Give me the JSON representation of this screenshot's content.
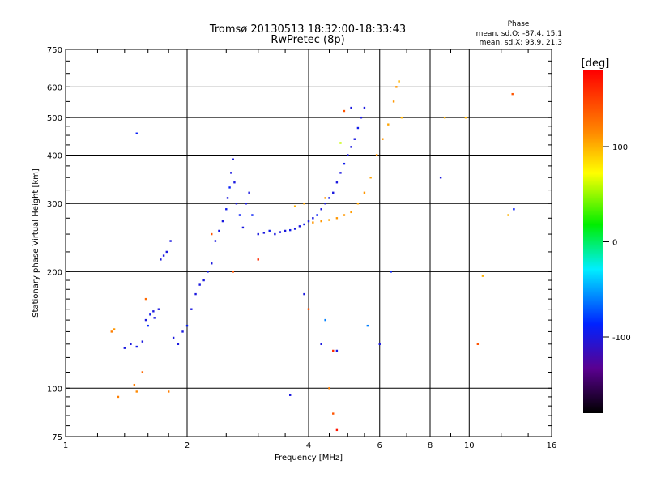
{
  "chart_data": {
    "type": "scatter",
    "title": "Tromsø 20130513 18:32:00-18:33:43",
    "subtitle": "RwPretec (8p)",
    "xlabel": "Frequency [MHz]",
    "ylabel": "Stationary phase Virtual Height [km]",
    "xscale": "log",
    "yscale": "log",
    "xlim": [
      1,
      16
    ],
    "ylim": [
      75,
      750
    ],
    "xticks": [
      1,
      2,
      4,
      6,
      8,
      10,
      16
    ],
    "xtick_labels": [
      "1",
      "2",
      "4",
      "6",
      "8",
      "10",
      "16"
    ],
    "yticks": [
      75,
      100,
      200,
      300,
      400,
      500,
      600,
      750
    ],
    "ytick_labels": [
      "75",
      "100",
      "200",
      "300",
      "400",
      "500",
      "600",
      "750"
    ],
    "grid": true,
    "stats": {
      "heading": "Phase",
      "line_o": "mean, sd,O:  -87.4, 15.1",
      "line_x": "mean, sd,X:  93.9, 21.3"
    },
    "colorbar": {
      "label": "[deg]",
      "range": [
        -180,
        180
      ],
      "ticks": [
        100,
        0,
        -100
      ],
      "tick_labels": [
        "100",
        "0",
        "-100"
      ]
    },
    "series": [
      {
        "name": "Phase (deg)",
        "points": [
          [
            1.4,
            127,
            -100
          ],
          [
            1.45,
            130,
            -100
          ],
          [
            1.5,
            128,
            -95
          ],
          [
            1.55,
            132,
            -100
          ],
          [
            1.58,
            150,
            -100
          ],
          [
            1.62,
            155,
            -95
          ],
          [
            1.66,
            152,
            -100
          ],
          [
            1.7,
            160,
            -100
          ],
          [
            1.65,
            158,
            -100
          ],
          [
            1.6,
            145,
            -85
          ],
          [
            1.72,
            215,
            -100
          ],
          [
            1.75,
            220,
            -100
          ],
          [
            1.78,
            225,
            -100
          ],
          [
            1.82,
            240,
            -100
          ],
          [
            1.85,
            135,
            -100
          ],
          [
            1.9,
            130,
            -100
          ],
          [
            1.95,
            140,
            -100
          ],
          [
            2.0,
            145,
            -90
          ],
          [
            2.05,
            160,
            -100
          ],
          [
            2.1,
            175,
            -100
          ],
          [
            2.15,
            185,
            -100
          ],
          [
            2.2,
            190,
            -100
          ],
          [
            2.25,
            200,
            -95
          ],
          [
            2.3,
            210,
            -100
          ],
          [
            2.35,
            240,
            -100
          ],
          [
            2.4,
            255,
            -100
          ],
          [
            2.45,
            270,
            -100
          ],
          [
            2.5,
            290,
            -95
          ],
          [
            2.52,
            310,
            -100
          ],
          [
            2.55,
            330,
            -90
          ],
          [
            2.57,
            360,
            -100
          ],
          [
            2.6,
            390,
            -100
          ],
          [
            2.62,
            340,
            -100
          ],
          [
            2.65,
            300,
            -100
          ],
          [
            2.7,
            280,
            -90
          ],
          [
            2.75,
            260,
            -100
          ],
          [
            2.8,
            300,
            -100
          ],
          [
            2.85,
            320,
            -100
          ],
          [
            2.9,
            280,
            -90
          ],
          [
            3.0,
            250,
            -100
          ],
          [
            3.1,
            252,
            -100
          ],
          [
            3.2,
            255,
            -95
          ],
          [
            3.3,
            250,
            -100
          ],
          [
            3.4,
            253,
            -100
          ],
          [
            3.5,
            255,
            -100
          ],
          [
            3.6,
            256,
            -95
          ],
          [
            3.7,
            258,
            -100
          ],
          [
            3.8,
            262,
            -100
          ],
          [
            3.9,
            265,
            -95
          ],
          [
            4.0,
            270,
            -100
          ],
          [
            4.1,
            275,
            -100
          ],
          [
            4.2,
            280,
            -90
          ],
          [
            4.3,
            290,
            -100
          ],
          [
            4.4,
            300,
            -100
          ],
          [
            4.5,
            310,
            -95
          ],
          [
            4.6,
            320,
            -100
          ],
          [
            4.7,
            340,
            -100
          ],
          [
            4.8,
            360,
            -100
          ],
          [
            4.9,
            380,
            -95
          ],
          [
            5.0,
            400,
            -100
          ],
          [
            5.1,
            420,
            -100
          ],
          [
            5.2,
            440,
            -100
          ],
          [
            5.3,
            470,
            -95
          ],
          [
            5.4,
            500,
            -100
          ],
          [
            5.5,
            530,
            -100
          ],
          [
            4.1,
            268,
            110
          ],
          [
            4.3,
            270,
            110
          ],
          [
            4.5,
            272,
            105
          ],
          [
            4.7,
            275,
            110
          ],
          [
            4.9,
            280,
            110
          ],
          [
            5.1,
            285,
            108
          ],
          [
            5.3,
            300,
            105
          ],
          [
            5.5,
            320,
            110
          ],
          [
            5.7,
            350,
            105
          ],
          [
            5.9,
            400,
            110
          ],
          [
            6.1,
            440,
            110
          ],
          [
            6.3,
            480,
            105
          ],
          [
            6.5,
            550,
            110
          ],
          [
            6.6,
            600,
            110
          ],
          [
            6.7,
            620,
            100
          ],
          [
            3.7,
            295,
            100
          ],
          [
            3.9,
            300,
            105
          ],
          [
            4.4,
            310,
            110
          ],
          [
            1.35,
            95,
            120
          ],
          [
            1.48,
            102,
            120
          ],
          [
            1.5,
            98,
            115
          ],
          [
            1.55,
            110,
            130
          ],
          [
            1.58,
            170,
            130
          ],
          [
            1.8,
            98,
            120
          ],
          [
            1.3,
            140,
            120
          ],
          [
            1.32,
            142,
            110
          ],
          [
            1.5,
            455,
            -90
          ],
          [
            2.3,
            250,
            140
          ],
          [
            2.6,
            200,
            140
          ],
          [
            3.0,
            215,
            160
          ],
          [
            3.6,
            96,
            -100
          ],
          [
            3.9,
            175,
            -100
          ],
          [
            4.0,
            160,
            140
          ],
          [
            4.3,
            130,
            -100
          ],
          [
            4.4,
            150,
            -60
          ],
          [
            4.6,
            125,
            160
          ],
          [
            4.7,
            125,
            -100
          ],
          [
            4.5,
            100,
            120
          ],
          [
            4.6,
            86,
            140
          ],
          [
            4.7,
            78,
            170
          ],
          [
            4.8,
            430,
            60
          ],
          [
            4.9,
            520,
            140
          ],
          [
            5.1,
            530,
            -100
          ],
          [
            6.4,
            200,
            -90
          ],
          [
            6.0,
            130,
            -100
          ],
          [
            6.8,
            500,
            100
          ],
          [
            8.5,
            350,
            -100
          ],
          [
            8.7,
            500,
            100
          ],
          [
            9.8,
            500,
            100
          ],
          [
            10.8,
            195,
            100
          ],
          [
            10.5,
            130,
            140
          ],
          [
            12.8,
            575,
            140
          ],
          [
            12.9,
            290,
            -90
          ],
          [
            12.5,
            280,
            100
          ],
          [
            5.6,
            145,
            -60
          ]
        ]
      }
    ]
  }
}
